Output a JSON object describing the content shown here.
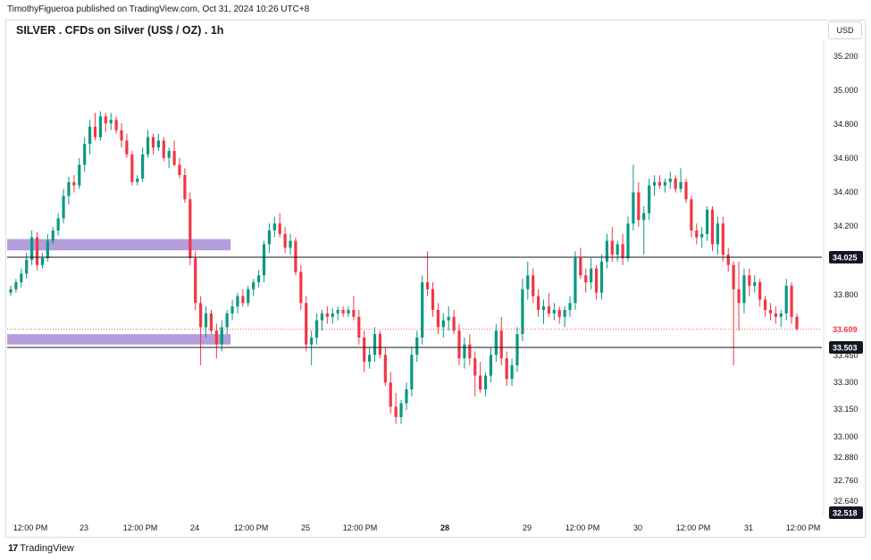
{
  "header": {
    "published": "TimothyFigueroa published on TradingView.com, Oct 31, 2024 10:26 UTC+8"
  },
  "footer": {
    "brand_logo": "17",
    "brand": "TradingView"
  },
  "colors": {
    "up": "#089981",
    "down": "#f23645",
    "zone": "#b39ddb",
    "level": "#131722"
  },
  "icons": {
    "brand": "tradingview-logo-icon"
  },
  "chart_data": {
    "type": "candlestick",
    "title": "SILVER . CFDs on Silver (US$ / OZ) . 1h",
    "currency": "USD",
    "y_ticks": [
      "35.200",
      "35.000",
      "34.800",
      "34.600",
      "34.400",
      "34.200",
      "34.000",
      "33.800",
      "33.450",
      "33.300",
      "33.150",
      "33.000",
      "32.880",
      "32.760",
      "32.640"
    ],
    "x_ticks": [
      "12:00 PM",
      "23",
      "12:00 PM",
      "24",
      "12:00 PM",
      "25",
      "12:00 PM",
      "28",
      "29",
      "12:00 PM",
      "30",
      "12:00 PM",
      "31",
      "12:00 PM"
    ],
    "x_ticks_bold": [
      "28"
    ],
    "levels": [
      {
        "label": "34.025",
        "price": 34.025,
        "style": "solid"
      },
      {
        "label": "33.503",
        "price": 33.503,
        "style": "solid"
      }
    ],
    "current_price": {
      "label": "33.609",
      "price": 33.609
    },
    "axis_min_label": "32.518",
    "zones": [
      {
        "from": 34.065,
        "to": 34.13,
        "start_index": 0,
        "end_index": 41
      },
      {
        "from": 33.52,
        "to": 33.58,
        "start_index": 0,
        "end_index": 41
      }
    ],
    "candles": [
      [
        33.82,
        33.86,
        33.8,
        33.84
      ],
      [
        33.84,
        33.9,
        33.82,
        33.88
      ],
      [
        33.88,
        33.96,
        33.85,
        33.93
      ],
      [
        33.93,
        34.05,
        33.9,
        34.01
      ],
      [
        34.01,
        34.18,
        33.98,
        34.14
      ],
      [
        34.14,
        34.17,
        33.95,
        33.98
      ],
      [
        33.98,
        34.05,
        33.96,
        34.02
      ],
      [
        34.02,
        34.16,
        34.0,
        34.12
      ],
      [
        34.12,
        34.2,
        34.1,
        34.18
      ],
      [
        34.18,
        34.28,
        34.15,
        34.25
      ],
      [
        34.25,
        34.42,
        34.22,
        34.38
      ],
      [
        34.38,
        34.49,
        34.33,
        34.46
      ],
      [
        34.46,
        34.5,
        34.4,
        34.44
      ],
      [
        34.44,
        34.6,
        34.42,
        34.56
      ],
      [
        34.56,
        34.72,
        34.52,
        34.68
      ],
      [
        34.68,
        34.82,
        34.62,
        34.78
      ],
      [
        34.78,
        34.86,
        34.7,
        34.72
      ],
      [
        34.72,
        34.87,
        34.7,
        34.84
      ],
      [
        34.84,
        34.86,
        34.75,
        34.8
      ],
      [
        34.8,
        34.86,
        34.76,
        34.82
      ],
      [
        34.82,
        34.84,
        34.74,
        34.76
      ],
      [
        34.76,
        34.8,
        34.66,
        34.7
      ],
      [
        34.7,
        34.74,
        34.6,
        34.62
      ],
      [
        34.62,
        34.64,
        34.44,
        34.46
      ],
      [
        34.46,
        34.5,
        34.44,
        34.48
      ],
      [
        34.48,
        34.66,
        34.46,
        34.62
      ],
      [
        34.62,
        34.76,
        34.6,
        34.72
      ],
      [
        34.72,
        34.74,
        34.62,
        34.66
      ],
      [
        34.66,
        34.74,
        34.64,
        34.7
      ],
      [
        34.7,
        34.72,
        34.58,
        34.6
      ],
      [
        34.6,
        34.66,
        34.54,
        34.64
      ],
      [
        34.64,
        34.7,
        34.55,
        34.56
      ],
      [
        34.56,
        34.6,
        34.48,
        34.5
      ],
      [
        34.5,
        34.54,
        34.34,
        34.36
      ],
      [
        34.36,
        34.4,
        33.98,
        34.02
      ],
      [
        34.02,
        34.06,
        33.72,
        33.76
      ],
      [
        33.76,
        33.8,
        33.4,
        33.62
      ],
      [
        33.62,
        33.74,
        33.56,
        33.7
      ],
      [
        33.7,
        33.72,
        33.58,
        33.6
      ],
      [
        33.6,
        33.64,
        33.44,
        33.52
      ],
      [
        33.52,
        33.66,
        33.48,
        33.62
      ],
      [
        33.62,
        33.72,
        33.58,
        33.7
      ],
      [
        33.7,
        33.78,
        33.66,
        33.74
      ],
      [
        33.74,
        33.82,
        33.7,
        33.8
      ],
      [
        33.8,
        33.84,
        33.74,
        33.76
      ],
      [
        33.76,
        33.86,
        33.74,
        33.84
      ],
      [
        33.84,
        33.9,
        33.8,
        33.88
      ],
      [
        33.88,
        33.95,
        33.85,
        33.92
      ],
      [
        33.92,
        34.12,
        33.88,
        34.1
      ],
      [
        34.1,
        34.22,
        34.05,
        34.18
      ],
      [
        34.18,
        34.26,
        34.14,
        34.22
      ],
      [
        34.22,
        34.28,
        34.14,
        34.16
      ],
      [
        34.16,
        34.2,
        34.05,
        34.08
      ],
      [
        34.08,
        34.16,
        34.04,
        34.12
      ],
      [
        34.12,
        34.14,
        33.92,
        33.94
      ],
      [
        33.94,
        33.98,
        33.72,
        33.76
      ],
      [
        33.76,
        33.8,
        33.48,
        33.52
      ],
      [
        33.52,
        33.6,
        33.4,
        33.56
      ],
      [
        33.56,
        33.7,
        33.52,
        33.66
      ],
      [
        33.66,
        33.72,
        33.6,
        33.7
      ],
      [
        33.7,
        33.74,
        33.64,
        33.68
      ],
      [
        33.68,
        33.73,
        33.64,
        33.7
      ],
      [
        33.7,
        33.74,
        33.66,
        33.72
      ],
      [
        33.72,
        33.74,
        33.68,
        33.7
      ],
      [
        33.7,
        33.74,
        33.68,
        33.72
      ],
      [
        33.72,
        33.8,
        33.66,
        33.68
      ],
      [
        33.68,
        33.72,
        33.52,
        33.56
      ],
      [
        33.56,
        33.6,
        33.36,
        33.42
      ],
      [
        33.42,
        33.5,
        33.38,
        33.46
      ],
      [
        33.46,
        33.62,
        33.42,
        33.58
      ],
      [
        33.58,
        33.6,
        33.44,
        33.46
      ],
      [
        33.46,
        33.5,
        33.28,
        33.3
      ],
      [
        33.3,
        33.36,
        33.12,
        33.16
      ],
      [
        33.16,
        33.24,
        33.06,
        33.1
      ],
      [
        33.1,
        33.2,
        33.06,
        33.18
      ],
      [
        33.18,
        33.3,
        33.14,
        33.26
      ],
      [
        33.26,
        33.5,
        33.22,
        33.46
      ],
      [
        33.46,
        33.6,
        33.42,
        33.56
      ],
      [
        33.56,
        33.92,
        33.52,
        33.88
      ],
      [
        33.88,
        34.06,
        33.8,
        33.84
      ],
      [
        33.84,
        33.88,
        33.68,
        33.72
      ],
      [
        33.72,
        33.76,
        33.58,
        33.62
      ],
      [
        33.62,
        33.7,
        33.56,
        33.66
      ],
      [
        33.66,
        33.74,
        33.6,
        33.68
      ],
      [
        33.68,
        33.72,
        33.58,
        33.6
      ],
      [
        33.6,
        33.64,
        33.4,
        33.44
      ],
      [
        33.44,
        33.56,
        33.38,
        33.52
      ],
      [
        33.52,
        33.58,
        33.4,
        33.44
      ],
      [
        33.44,
        33.48,
        33.22,
        33.34
      ],
      [
        33.34,
        33.42,
        33.24,
        33.26
      ],
      [
        33.26,
        33.36,
        33.22,
        33.34
      ],
      [
        33.34,
        33.5,
        33.3,
        33.46
      ],
      [
        33.46,
        33.64,
        33.42,
        33.6
      ],
      [
        33.6,
        33.68,
        33.4,
        33.44
      ],
      [
        33.44,
        33.48,
        33.28,
        33.32
      ],
      [
        33.32,
        33.44,
        33.28,
        33.4
      ],
      [
        33.4,
        33.62,
        33.36,
        33.58
      ],
      [
        33.58,
        33.9,
        33.54,
        33.84
      ],
      [
        33.84,
        34.0,
        33.78,
        33.92
      ],
      [
        33.92,
        33.96,
        33.76,
        33.8
      ],
      [
        33.8,
        33.84,
        33.68,
        33.72
      ],
      [
        33.72,
        33.78,
        33.64,
        33.74
      ],
      [
        33.74,
        33.82,
        33.68,
        33.7
      ],
      [
        33.7,
        33.76,
        33.66,
        33.72
      ],
      [
        33.72,
        33.74,
        33.64,
        33.68
      ],
      [
        33.68,
        33.74,
        33.62,
        33.72
      ],
      [
        33.72,
        33.8,
        33.68,
        33.76
      ],
      [
        33.76,
        34.06,
        33.72,
        34.02
      ],
      [
        34.02,
        34.08,
        33.9,
        33.92
      ],
      [
        33.92,
        33.96,
        33.82,
        33.88
      ],
      [
        33.88,
        34.02,
        33.84,
        33.96
      ],
      [
        33.96,
        33.98,
        33.78,
        33.82
      ],
      [
        33.82,
        34.04,
        33.78,
        34.0
      ],
      [
        34.0,
        34.16,
        33.96,
        34.12
      ],
      [
        34.12,
        34.2,
        34.0,
        34.04
      ],
      [
        34.04,
        34.12,
        34.0,
        34.1
      ],
      [
        34.1,
        34.16,
        33.98,
        34.02
      ],
      [
        34.02,
        34.26,
        34.0,
        34.22
      ],
      [
        34.22,
        34.56,
        34.18,
        34.4
      ],
      [
        34.4,
        34.46,
        34.2,
        34.24
      ],
      [
        34.24,
        34.32,
        34.04,
        34.28
      ],
      [
        34.28,
        34.48,
        34.24,
        34.44
      ],
      [
        34.44,
        34.5,
        34.38,
        34.46
      ],
      [
        34.46,
        34.5,
        34.42,
        34.44
      ],
      [
        34.44,
        34.48,
        34.4,
        34.46
      ],
      [
        34.46,
        34.52,
        34.42,
        34.48
      ],
      [
        34.48,
        34.5,
        34.4,
        34.42
      ],
      [
        34.42,
        34.54,
        34.4,
        34.46
      ],
      [
        34.46,
        34.48,
        34.34,
        34.36
      ],
      [
        34.36,
        34.38,
        34.14,
        34.18
      ],
      [
        34.18,
        34.22,
        34.1,
        34.14
      ],
      [
        34.14,
        34.2,
        34.08,
        34.16
      ],
      [
        34.16,
        34.32,
        34.12,
        34.3
      ],
      [
        34.3,
        34.32,
        34.06,
        34.1
      ],
      [
        34.1,
        34.26,
        34.04,
        34.22
      ],
      [
        34.22,
        34.26,
        34.0,
        34.04
      ],
      [
        34.04,
        34.08,
        33.94,
        33.98
      ],
      [
        33.98,
        34.0,
        33.4,
        33.84
      ],
      [
        33.84,
        34.0,
        33.6,
        33.76
      ],
      [
        33.76,
        33.96,
        33.7,
        33.92
      ],
      [
        33.92,
        33.96,
        33.8,
        33.86
      ],
      [
        33.86,
        33.92,
        33.82,
        33.88
      ],
      [
        33.88,
        33.9,
        33.74,
        33.78
      ],
      [
        33.78,
        33.8,
        33.68,
        33.72
      ],
      [
        33.72,
        33.76,
        33.66,
        33.7
      ],
      [
        33.7,
        33.74,
        33.64,
        33.68
      ],
      [
        33.68,
        33.72,
        33.62,
        33.7
      ],
      [
        33.7,
        33.9,
        33.66,
        33.86
      ],
      [
        33.86,
        33.88,
        33.64,
        33.68
      ],
      [
        33.68,
        33.7,
        33.6,
        33.61
      ]
    ]
  }
}
